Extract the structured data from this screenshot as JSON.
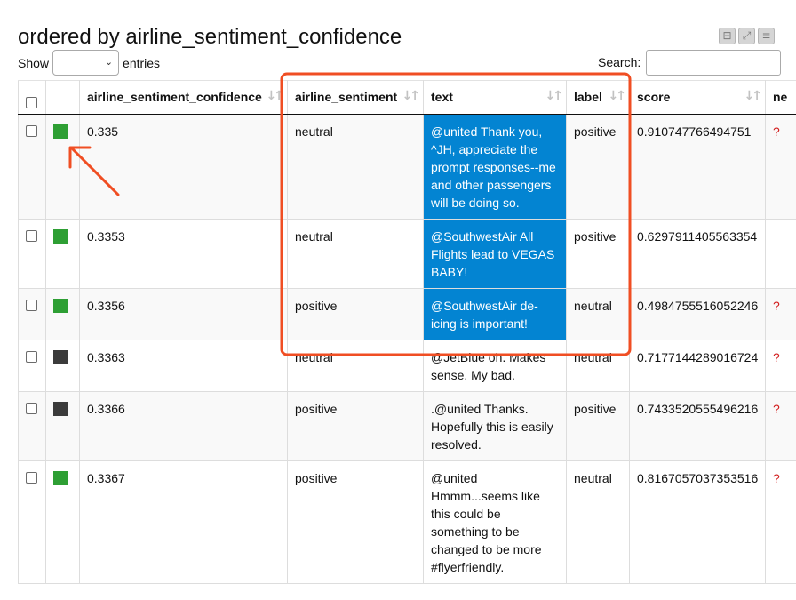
{
  "title": "ordered by airline_sentiment_confidence",
  "show_label": "Show",
  "entries_label": "entries",
  "show_select_value": "",
  "search_label": "Search:",
  "search_value": "",
  "window_icons": [
    "minimize-icon",
    "expand-icon",
    "menu-icon"
  ],
  "columns": [
    {
      "label": ""
    },
    {
      "label": ""
    },
    {
      "label": "airline_sentiment_confidence"
    },
    {
      "label": "airline_sentiment"
    },
    {
      "label": "text"
    },
    {
      "label": "label"
    },
    {
      "label": "score"
    },
    {
      "label": "ne"
    }
  ],
  "sort_glyph": "↓↑",
  "rows": [
    {
      "color": "#2e9f34",
      "confidence": "0.335",
      "sentiment": "neutral",
      "text": "@united Thank you, ^JH, appreciate the prompt responses--me and other passengers will be doing so.",
      "label": "positive",
      "score": "0.910747766494751",
      "extra": "?",
      "selected": true
    },
    {
      "color": "#2e9f34",
      "confidence": "0.3353",
      "sentiment": "neutral",
      "text": "@SouthwestAir All Flights lead to VEGAS BABY!",
      "label": "positive",
      "score": "0.6297911405563354",
      "extra": "",
      "selected": true
    },
    {
      "color": "#2e9f34",
      "confidence": "0.3356",
      "sentiment": "positive",
      "text": "@SouthwestAir de-icing is important!",
      "label": "neutral",
      "score": "0.4984755516052246",
      "extra": "?",
      "selected": true
    },
    {
      "color": "#3b3b3b",
      "confidence": "0.3363",
      "sentiment": "neutral",
      "text": "@JetBlue oh. Makes sense. My bad.",
      "label": "neutral",
      "score": "0.7177144289016724",
      "extra": "?",
      "selected": false
    },
    {
      "color": "#3b3b3b",
      "confidence": "0.3366",
      "sentiment": "positive",
      "text": ".@united Thanks. Hopefully this is easily resolved.",
      "label": "positive",
      "score": "0.7433520555496216",
      "extra": "?",
      "selected": false
    },
    {
      "color": "#2e9f34",
      "confidence": "0.3367",
      "sentiment": "positive",
      "text": "@united Hmmm...seems like this could be something to be changed to be more #flyerfriendly.",
      "label": "neutral",
      "score": "0.8167057037353516",
      "extra": "?",
      "selected": false
    }
  ],
  "annotation": {
    "box_color": "#f04e23",
    "arrow_color": "#f04e23"
  }
}
